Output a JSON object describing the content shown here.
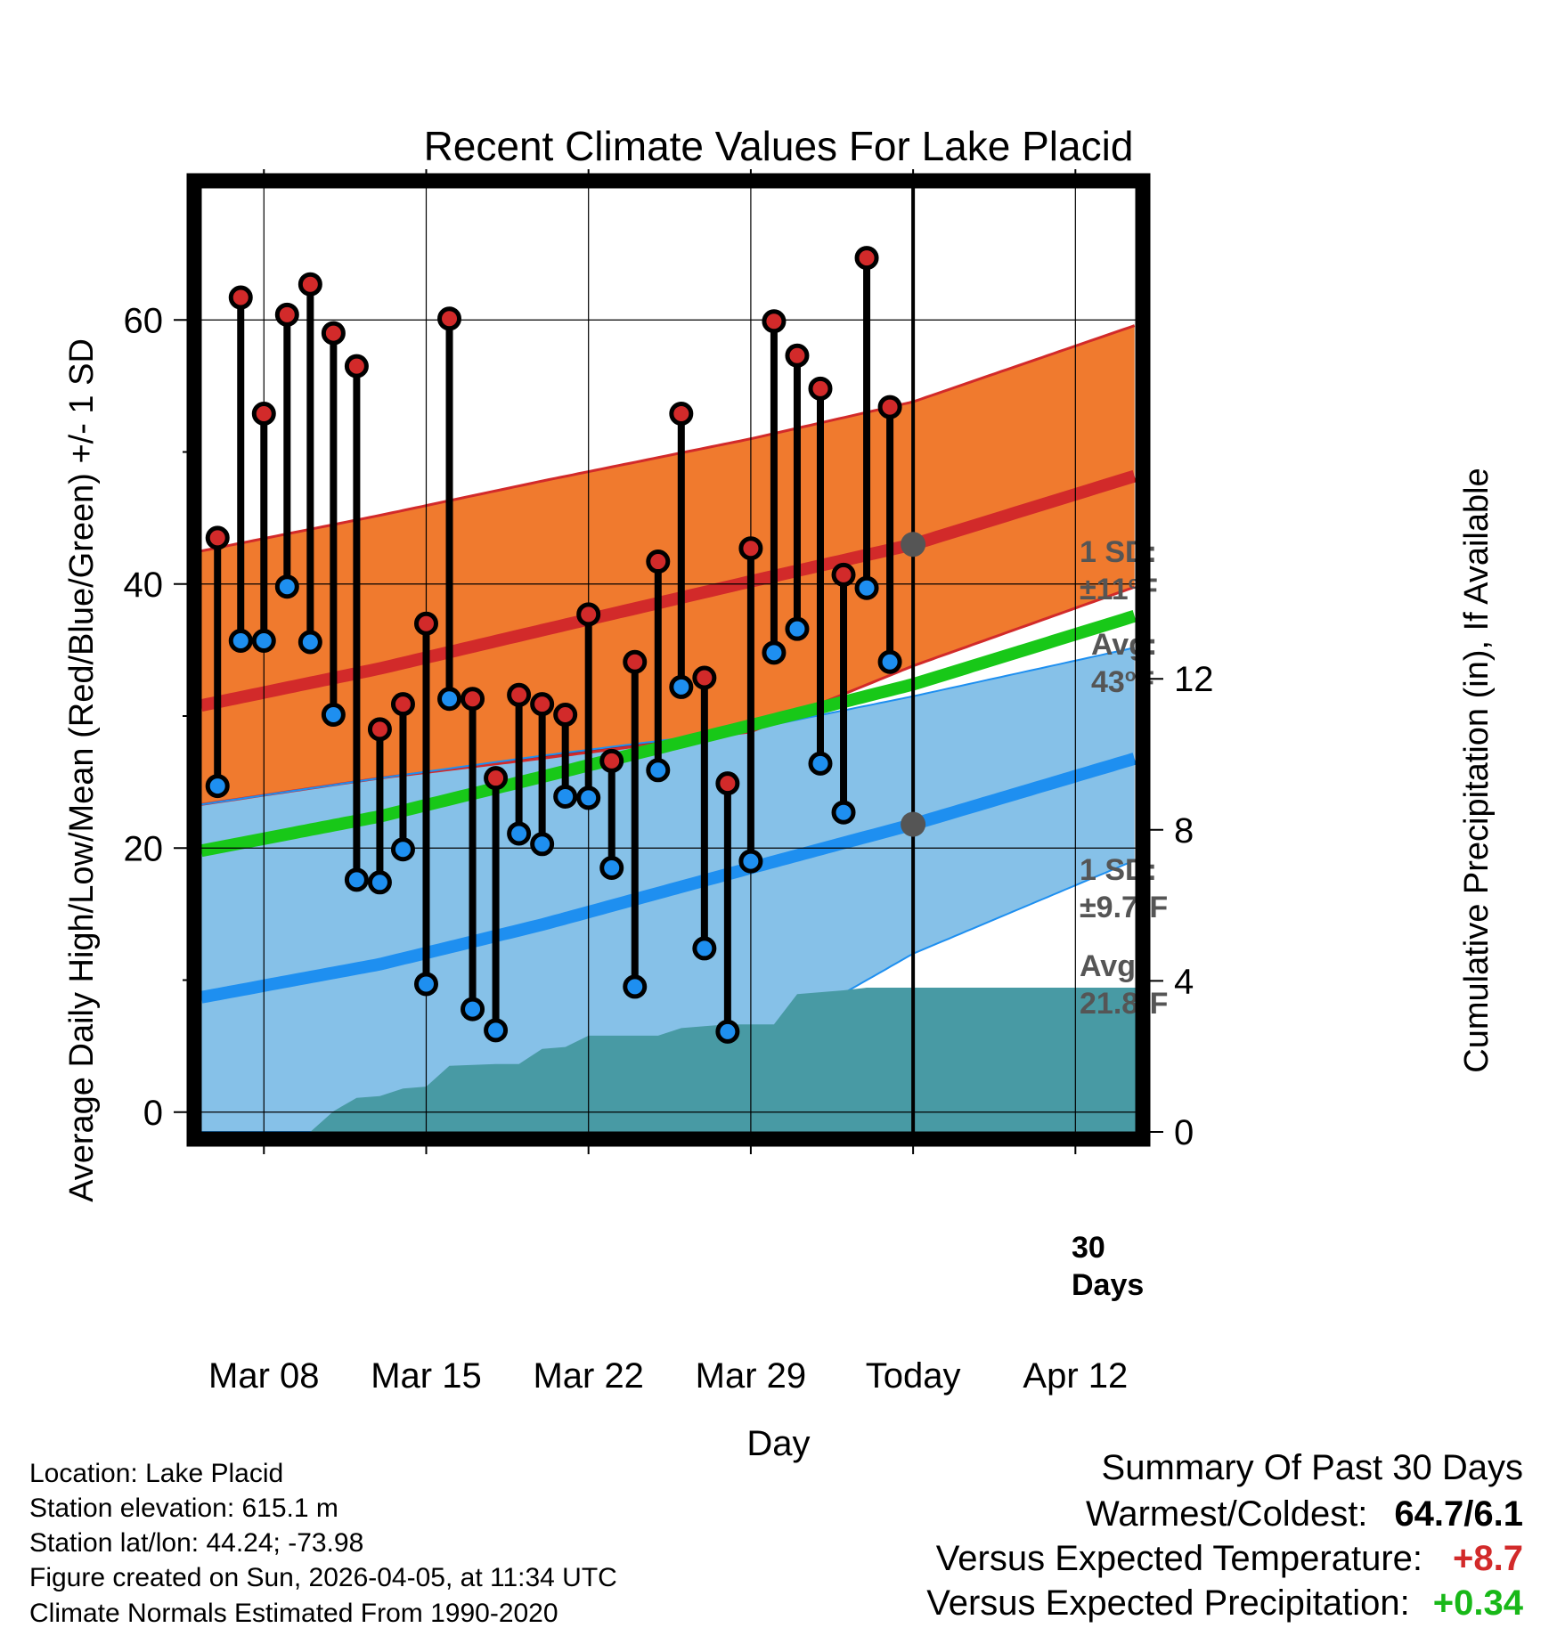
{
  "chart_data": {
    "type": "line",
    "title": "Recent Climate Values For Lake Placid",
    "xlabel": "Day",
    "ylabel_left": "Average Daily High/Low/Mean (Red/Blue/Green) +/- 1 SD",
    "ylabel_right": "Cumulative Precipitation (in), If Available",
    "x_tick_labels": [
      "Mar 08",
      "Mar 15",
      "Mar 22",
      "Mar 29",
      "Today",
      "Apr 12"
    ],
    "x_tick_days": [
      0,
      7,
      14,
      21,
      28,
      35
    ],
    "x_range_days": [
      -2.7,
      37.6
    ],
    "ylim": [
      -1.5,
      70
    ],
    "y_ticks": [
      0,
      20,
      40,
      60
    ],
    "y_ticks_minor": [
      10,
      30,
      50
    ],
    "y2lim": [
      0,
      25
    ],
    "y2_ticks": [
      0,
      4,
      8,
      12
    ],
    "normals": {
      "days": [
        -2.7,
        5,
        12,
        21,
        28,
        37.6
      ],
      "high_mean": [
        30.8,
        33.6,
        36.5,
        40.2,
        43.0,
        48.2
      ],
      "high_plus_sd": [
        42.5,
        45.2,
        47.8,
        51.0,
        53.8,
        59.6
      ],
      "high_minus_sd": [
        23.3,
        25.3,
        26.8,
        28.8,
        33.8,
        39.8
      ],
      "low_mean": [
        8.7,
        11.2,
        14.2,
        18.5,
        21.8,
        26.8
      ],
      "low_plus_sd": [
        23.3,
        25.3,
        27.0,
        29.0,
        31.5,
        35.2
      ],
      "low_minus_sd": [
        -1.5,
        -1.5,
        -1.5,
        5.0,
        12.0,
        19.1
      ],
      "mean": [
        19.8,
        22.4,
        25.4,
        29.3,
        32.4,
        37.6
      ]
    },
    "daily": {
      "days": [
        -2,
        -1,
        0,
        1,
        2,
        3,
        4,
        5,
        6,
        7,
        8,
        9,
        10,
        11,
        12,
        13,
        14,
        15,
        16,
        17,
        18,
        19,
        20,
        21,
        22,
        23,
        24,
        25,
        26,
        27
      ],
      "high": [
        43.5,
        61.7,
        52.9,
        60.4,
        62.7,
        59.0,
        56.5,
        29.0,
        30.9,
        37.0,
        60.1,
        31.3,
        25.3,
        31.6,
        30.9,
        30.1,
        37.7,
        26.6,
        34.1,
        41.7,
        52.9,
        32.9,
        24.9,
        42.7,
        59.9,
        57.3,
        54.8,
        40.7,
        64.7,
        53.4
      ],
      "low": [
        24.7,
        35.7,
        35.7,
        39.8,
        35.6,
        30.1,
        17.6,
        17.4,
        19.9,
        9.7,
        31.3,
        7.8,
        6.2,
        21.1,
        20.3,
        23.9,
        23.8,
        18.5,
        9.5,
        25.9,
        32.2,
        12.4,
        6.1,
        19.0,
        34.8,
        36.6,
        26.4,
        22.7,
        39.7,
        34.1
      ]
    },
    "precip_cumulative": {
      "days": [
        -2.7,
        2,
        3,
        4,
        5,
        6,
        7,
        8,
        10,
        11,
        12,
        13,
        14,
        16,
        17,
        18,
        19,
        20,
        21,
        22,
        23,
        24,
        25,
        26,
        37.6
      ],
      "values": [
        0,
        0,
        0.55,
        0.9,
        0.95,
        1.15,
        1.2,
        1.75,
        1.8,
        1.8,
        2.2,
        2.25,
        2.55,
        2.55,
        2.55,
        2.75,
        2.8,
        2.85,
        2.85,
        2.85,
        3.65,
        3.7,
        3.75,
        3.82,
        3.82
      ]
    },
    "annotations": {
      "high_sd_label": "1 SD:",
      "high_sd_value": "±11",
      "high_avg_label": "Avg:",
      "high_avg_value": "43",
      "low_sd_label": "1 SD:",
      "low_sd_value": "±9.7",
      "low_avg_label": "Avg:",
      "low_avg_value": "21.8",
      "degree_mark": "o",
      "unit": "F",
      "today_line_label_1": "30",
      "today_line_label_2": "Days",
      "today_high_avg": 43,
      "today_low_avg": 21.8
    },
    "colors": {
      "high_band": "#f07a2e",
      "high_line": "#d22a2a",
      "overlap_band": "#92161a",
      "low_band": "#86c1e8",
      "low_line": "#1e8ff0",
      "mean_line": "#18c818",
      "precip": "#489aa4",
      "high_dot": "#d22a2a",
      "low_dot": "#1e8ff0",
      "annotation": "#555555"
    }
  },
  "info": {
    "location": "Location: Lake Placid",
    "elevation": "Station elevation: 615.1 m",
    "latlon": "Station lat/lon: 44.24; -73.98",
    "created": "Figure created on Sun, 2026-04-05, at 11:34 UTC",
    "normals": "Climate Normals Estimated From 1990-2020"
  },
  "summary": {
    "title": "Summary Of Past 30 Days",
    "warmest_label": "Warmest/Coldest:",
    "warmest_value": "64.7/6.1",
    "temp_label": "Versus Expected Temperature:",
    "temp_value": "+8.7",
    "temp_color": "#d22a2a",
    "precip_label": "Versus Expected Precipitation:",
    "precip_value": "+0.34",
    "precip_color": "#18b818"
  }
}
